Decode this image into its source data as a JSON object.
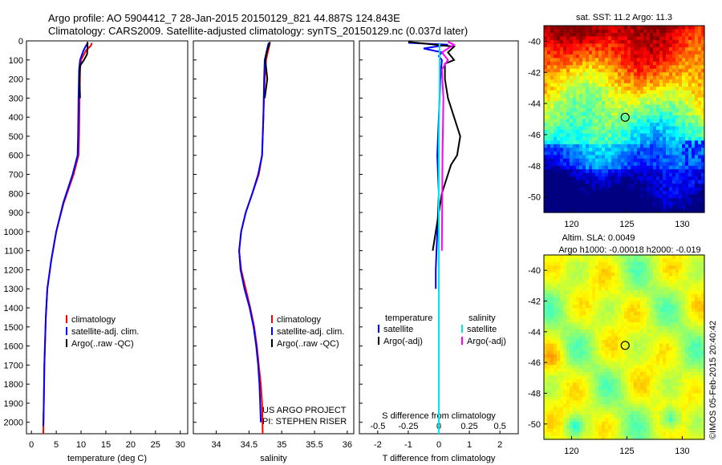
{
  "header": {
    "line1": "Argo profile: AO 5904412_7 28-Jan-2015 20150129_821 44.887S 124.843E",
    "line2": "Climatology: CARS2009. Satellite-adjusted climatology: synTS_20150129.nc (0.037d later)"
  },
  "depth_ticks": [
    0,
    100,
    200,
    300,
    400,
    500,
    600,
    700,
    800,
    900,
    1000,
    1100,
    1200,
    1300,
    1400,
    1500,
    1600,
    1700,
    1800,
    1900,
    2000
  ],
  "depth_max": 2060,
  "chart_data": [
    {
      "type": "line",
      "id": "temperature",
      "xlabel": "temperature (deg C)",
      "ylabel": "depth",
      "xlim": [
        -1,
        31.5
      ],
      "ylim": [
        2060,
        0
      ],
      "xticks": [
        0,
        5,
        10,
        15,
        20,
        25,
        30
      ],
      "legend_position": "middle-right",
      "legend": [
        "climatology",
        "satellite-adj. clim.",
        "Argo(..raw -QC)"
      ],
      "series": [
        {
          "name": "climatology",
          "color": "#ff0000",
          "points": [
            [
              12.2,
              10
            ],
            [
              12.0,
              25
            ],
            [
              11.0,
              50
            ],
            [
              10.0,
              100
            ],
            [
              9.8,
              150
            ],
            [
              9.7,
              300
            ],
            [
              9.6,
              500
            ],
            [
              9.5,
              600
            ],
            [
              8.5,
              700
            ],
            [
              6.5,
              850
            ],
            [
              5.0,
              1000
            ],
            [
              4.0,
              1150
            ],
            [
              3.2,
              1300
            ],
            [
              2.9,
              1450
            ],
            [
              2.6,
              1700
            ],
            [
              2.5,
              1900
            ],
            [
              2.4,
              2060
            ]
          ]
        },
        {
          "name": "satellite-adj. clim.",
          "color": "#0000ff",
          "points": [
            [
              11.4,
              10
            ],
            [
              11.0,
              25
            ],
            [
              10.5,
              50
            ],
            [
              9.8,
              100
            ],
            [
              9.6,
              150
            ],
            [
              9.5,
              300
            ],
            [
              9.4,
              500
            ],
            [
              9.3,
              600
            ],
            [
              8.3,
              700
            ],
            [
              6.4,
              850
            ],
            [
              5.0,
              1000
            ],
            [
              4.0,
              1150
            ],
            [
              3.2,
              1300
            ],
            [
              2.9,
              1450
            ],
            [
              2.6,
              1700
            ],
            [
              2.5,
              1900
            ],
            [
              2.4,
              2020
            ]
          ]
        },
        {
          "name": "Argo(..raw -QC)",
          "color": "#000000",
          "points": [
            [
              11.3,
              5
            ],
            [
              11.3,
              40
            ],
            [
              11.2,
              70
            ],
            [
              10.6,
              100
            ],
            [
              9.8,
              130
            ],
            [
              9.7,
              200
            ],
            [
              9.8,
              300
            ]
          ]
        }
      ]
    },
    {
      "type": "line",
      "id": "salinity",
      "xlabel": "salinity",
      "ylabel": "depth",
      "xlim": [
        33.65,
        36.1
      ],
      "ylim": [
        2060,
        0
      ],
      "xticks": [
        34,
        34.5,
        35,
        35.5,
        36
      ],
      "legend_position": "middle-right",
      "legend": [
        "climatology",
        "satellite-adj. clim.",
        "Argo(..raw -QC)"
      ],
      "annotation": [
        "US ARGO PROJECT",
        "PI: STEPHEN RISER"
      ],
      "series": [
        {
          "name": "climatology",
          "color": "#ff0000",
          "points": [
            [
              34.82,
              10
            ],
            [
              34.8,
              40
            ],
            [
              34.76,
              100
            ],
            [
              34.74,
              200
            ],
            [
              34.72,
              400
            ],
            [
              34.7,
              600
            ],
            [
              34.65,
              700
            ],
            [
              34.55,
              800
            ],
            [
              34.45,
              900
            ],
            [
              34.38,
              1000
            ],
            [
              34.35,
              1100
            ],
            [
              34.38,
              1200
            ],
            [
              34.45,
              1300
            ],
            [
              34.52,
              1400
            ],
            [
              34.58,
              1500
            ],
            [
              34.62,
              1600
            ],
            [
              34.65,
              1700
            ],
            [
              34.68,
              1800
            ],
            [
              34.7,
              1900
            ],
            [
              34.71,
              2060
            ]
          ]
        },
        {
          "name": "satellite-adj. clim.",
          "color": "#0000ff",
          "points": [
            [
              34.8,
              10
            ],
            [
              34.78,
              40
            ],
            [
              34.74,
              100
            ],
            [
              34.73,
              200
            ],
            [
              34.72,
              400
            ],
            [
              34.7,
              600
            ],
            [
              34.64,
              700
            ],
            [
              34.55,
              800
            ],
            [
              34.45,
              900
            ],
            [
              34.38,
              1000
            ],
            [
              34.35,
              1100
            ],
            [
              34.37,
              1200
            ],
            [
              34.43,
              1300
            ],
            [
              34.51,
              1400
            ],
            [
              34.57,
              1500
            ],
            [
              34.61,
              1600
            ],
            [
              34.64,
              1700
            ],
            [
              34.66,
              1800
            ],
            [
              34.67,
              1900
            ],
            [
              34.68,
              2000
            ]
          ]
        },
        {
          "name": "Argo(..raw -QC)",
          "color": "#000000",
          "points": [
            [
              34.82,
              5
            ],
            [
              34.8,
              30
            ],
            [
              34.77,
              60
            ],
            [
              34.75,
              100
            ],
            [
              34.78,
              200
            ],
            [
              34.74,
              300
            ]
          ]
        }
      ]
    },
    {
      "type": "line",
      "id": "differences",
      "xlabel": "T difference from climatology",
      "xlim": [
        -2.6,
        2.6
      ],
      "ylim": [
        2060,
        0
      ],
      "xticks": [
        -2,
        -1,
        0,
        1,
        2
      ],
      "top_axis_label": "S difference from climatology",
      "top_xlim": [
        -0.65,
        0.65
      ],
      "top_xticks": [
        -0.5,
        -0.25,
        0,
        0.25,
        0.5
      ],
      "legend_position": "bottom-center",
      "legend_groups": [
        "temperature",
        "salinity"
      ],
      "legend": [
        "satellite",
        "Argo(-adj)",
        "satellite",
        "Argo(-adj)"
      ],
      "series": [
        {
          "name": "T satellite",
          "color": "#0000ff",
          "points": [
            [
              -1.0,
              10
            ],
            [
              0.3,
              20
            ],
            [
              -0.5,
              40
            ],
            [
              0.1,
              60
            ],
            [
              0.0,
              80
            ],
            [
              0.1,
              100
            ],
            [
              0.05,
              200
            ],
            [
              0.0,
              400
            ],
            [
              -0.05,
              600
            ],
            [
              0.0,
              800
            ],
            [
              -0.05,
              1000
            ],
            [
              -0.1,
              1200
            ],
            [
              -0.1,
              1300
            ]
          ]
        },
        {
          "name": "T Argo(-adj)",
          "color": "#000000",
          "points": [
            [
              -1.0,
              5
            ],
            [
              0.5,
              30
            ],
            [
              0.3,
              60
            ],
            [
              0.5,
              100
            ],
            [
              0.2,
              120
            ],
            [
              0.2,
              200
            ],
            [
              0.3,
              300
            ],
            [
              0.5,
              400
            ],
            [
              0.7,
              500
            ],
            [
              0.6,
              600
            ],
            [
              0.4,
              650
            ],
            [
              0.1,
              800
            ],
            [
              -0.1,
              1000
            ],
            [
              -0.2,
              1100
            ]
          ]
        },
        {
          "name": "S satellite",
          "color": "#00e5ee",
          "points": [
            [
              0.02,
              10
            ],
            [
              0.03,
              100
            ],
            [
              0.02,
              300
            ],
            [
              0.0,
              500
            ],
            [
              0.0,
              800
            ],
            [
              0.0,
              1100
            ],
            [
              0.0,
              1400
            ],
            [
              0.0,
              1700
            ],
            [
              0.0,
              2000
            ],
            [
              0.0,
              2060
            ]
          ]
        },
        {
          "name": "S Argo(-adj)",
          "color": "#ff00ff",
          "points": [
            [
              0.3,
              5
            ],
            [
              0.5,
              20
            ],
            [
              0.1,
              60
            ],
            [
              0.3,
              100
            ],
            [
              0.1,
              150
            ],
            [
              0.15,
              300
            ],
            [
              0.12,
              600
            ],
            [
              0.1,
              1100
            ]
          ]
        }
      ]
    },
    {
      "type": "heatmap",
      "id": "sst-map",
      "title": "sat. SST: 11.2 Argo: 11.3",
      "xlim": [
        117.5,
        132
      ],
      "ylim": [
        -51,
        -39
      ],
      "xticks": [
        120,
        125,
        130
      ],
      "yticks": [
        -40,
        -42,
        -44,
        -46,
        -48,
        -50
      ],
      "marker": [
        124.843,
        -44.887
      ]
    },
    {
      "type": "heatmap",
      "id": "sla-map",
      "title": "Altim. SLA: 0.0049",
      "subtitle": "Argo h1000: -0.00018 h2000: -0.019",
      "xlim": [
        117.5,
        132
      ],
      "ylim": [
        -51,
        -39
      ],
      "xticks": [
        120,
        125,
        130
      ],
      "yticks": [
        -40,
        -42,
        -44,
        -46,
        -48,
        -50
      ],
      "marker": [
        124.843,
        -44.887
      ]
    }
  ],
  "footer": {
    "timestamp": "©IMOS 05-Feb-2015 20:40:42"
  }
}
